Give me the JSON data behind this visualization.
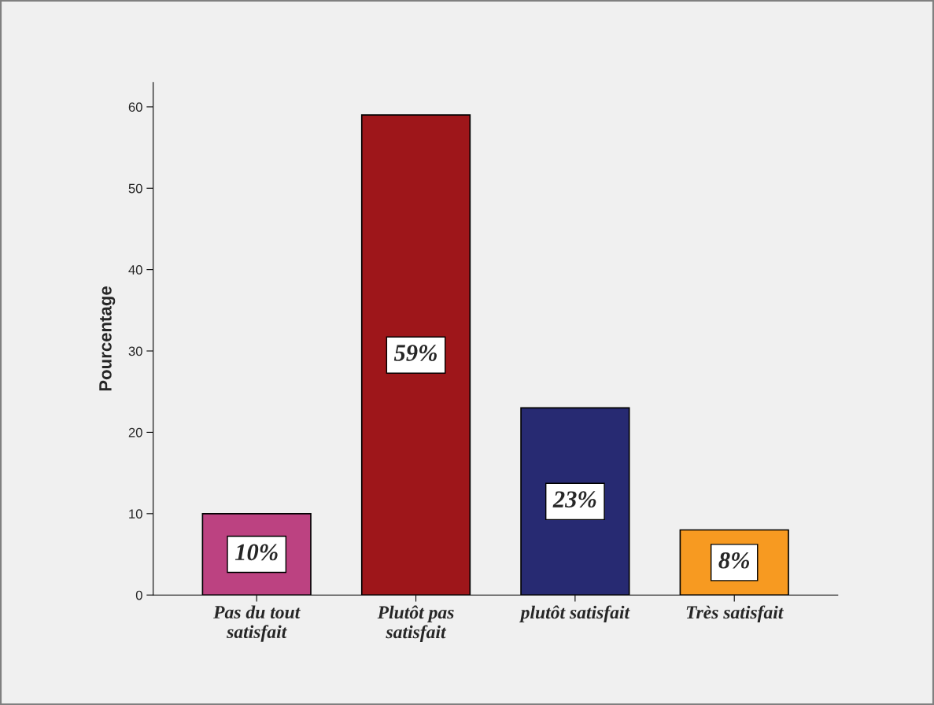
{
  "chart_data": {
    "type": "bar",
    "ylabel": "Pourcentage",
    "categories": [
      "Pas du tout\nsatisfait",
      "Plutôt pas\nsatisfait",
      "plutôt satisfait",
      "Très satisfait"
    ],
    "values": [
      10,
      59,
      23,
      8
    ],
    "colors": [
      "#bc4281",
      "#9e161a",
      "#272a72",
      "#f79a21"
    ],
    "value_labels": [
      "10%",
      "59%",
      "23%",
      "8%"
    ],
    "ylim": [
      0,
      63
    ],
    "yticks": [
      0,
      10,
      20,
      30,
      40,
      50,
      60
    ],
    "grid": false,
    "legend": false
  }
}
